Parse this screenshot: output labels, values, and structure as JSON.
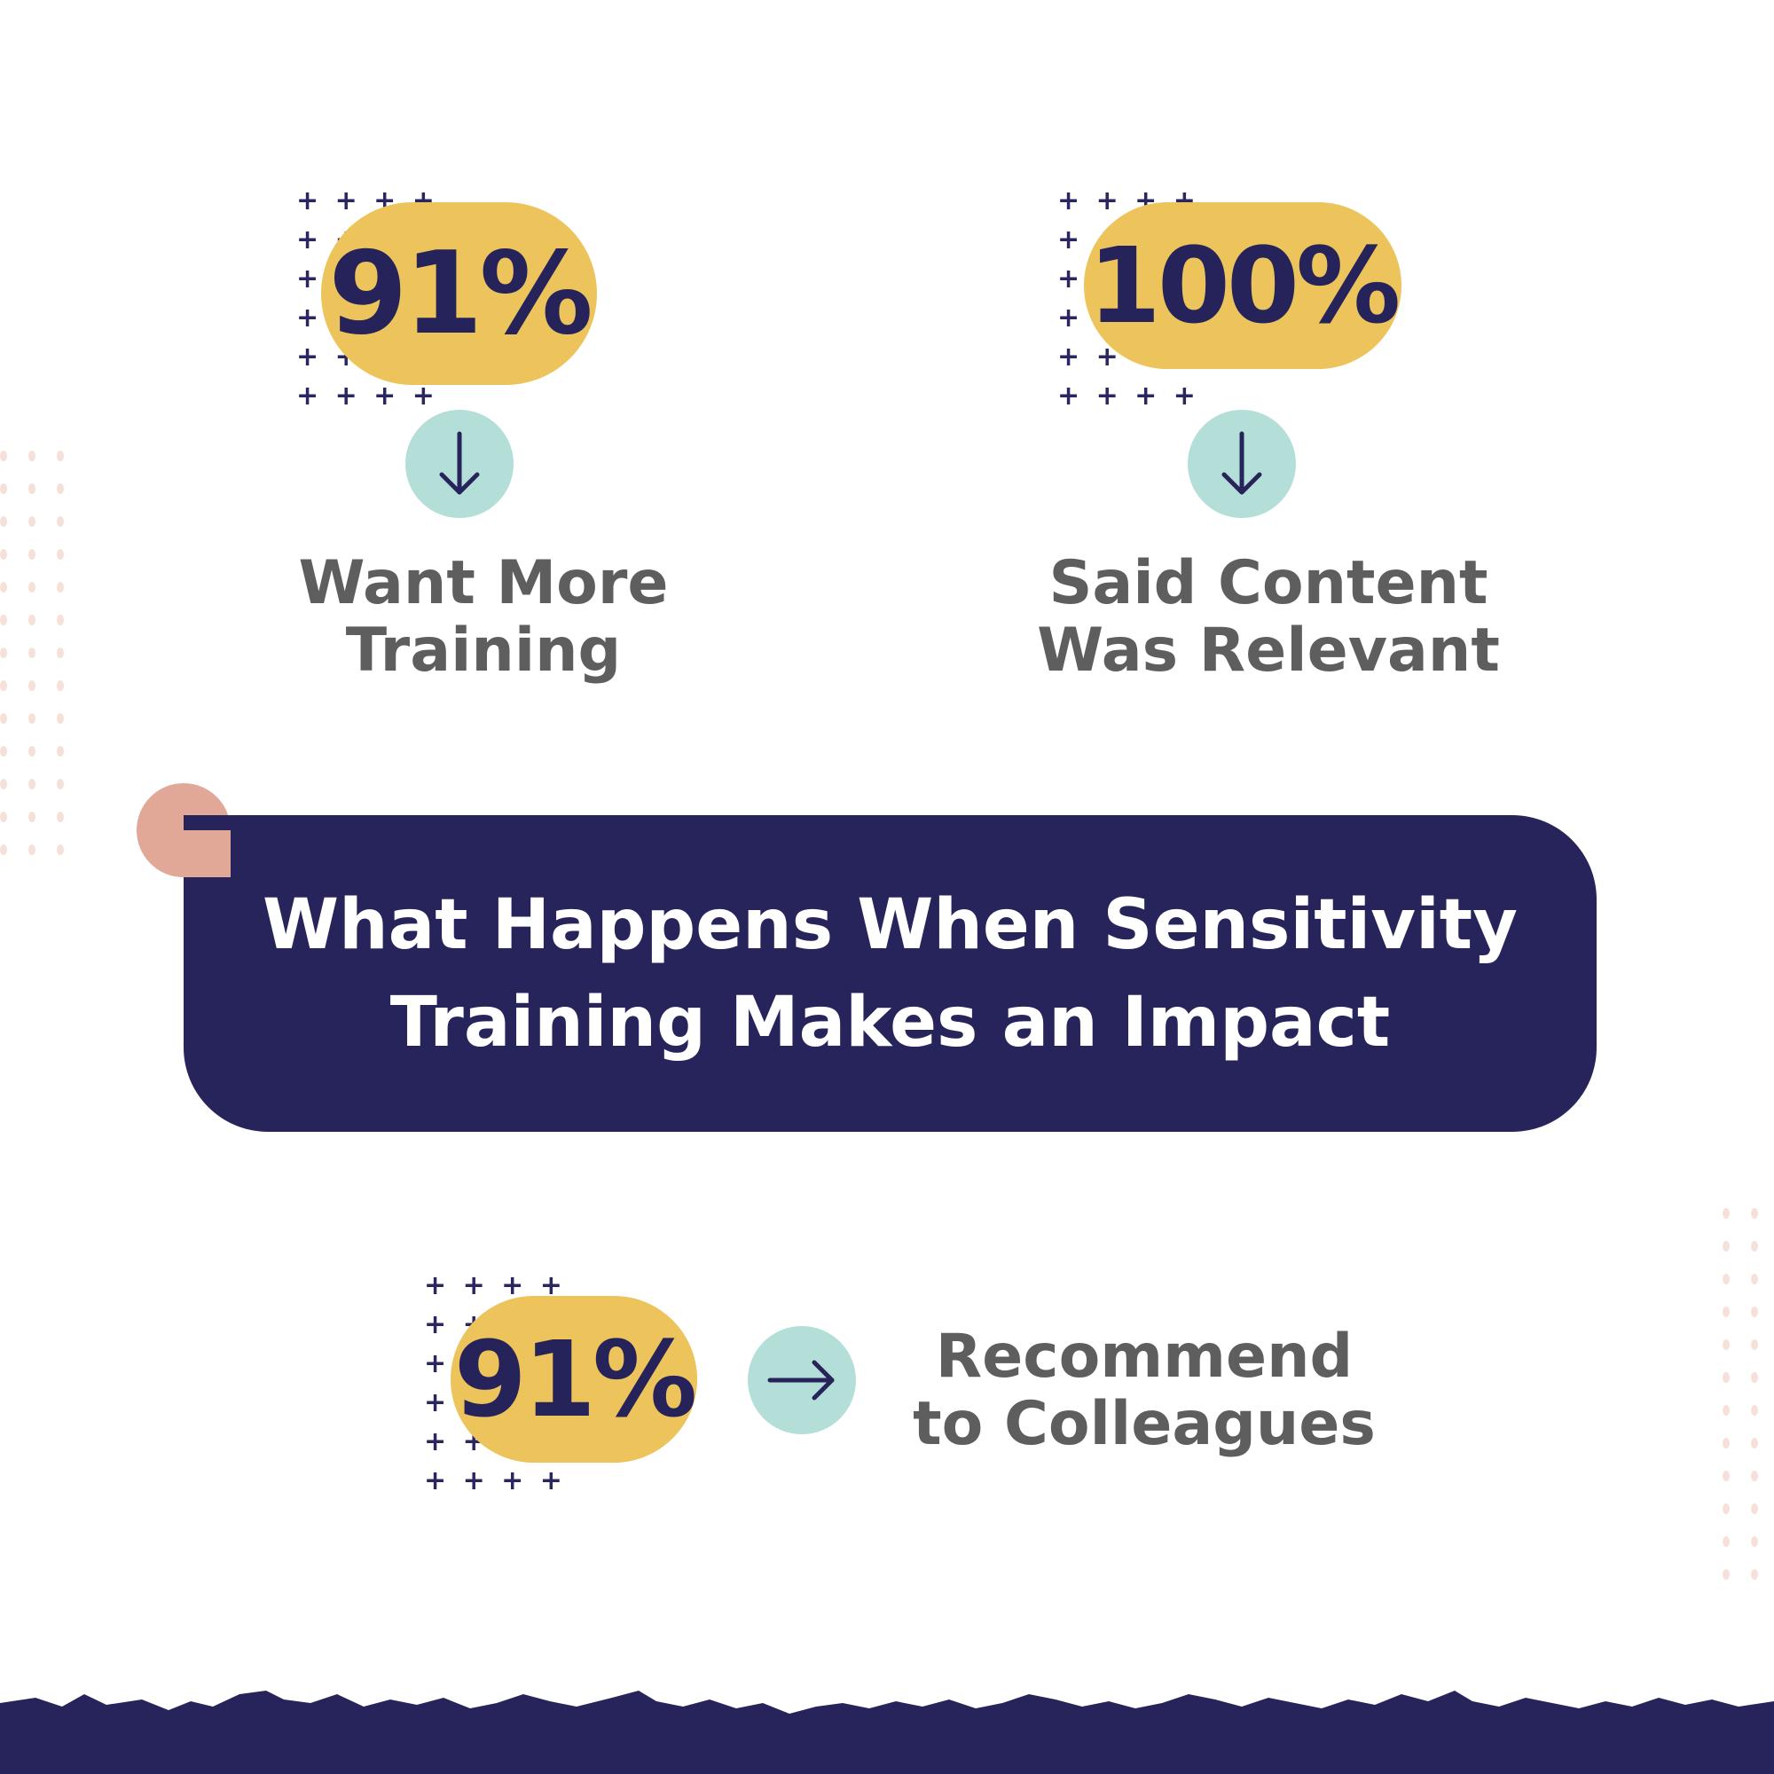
{
  "title": "What Happens When Sensitivity Training Makes an Impact",
  "stats": [
    {
      "value": "91%",
      "label_line1": "Want More",
      "label_line2": "Training",
      "arrow": "arrow-down-icon"
    },
    {
      "value": "100%",
      "label_line1": "Said Content",
      "label_line2": "Was Relevant",
      "arrow": "arrow-down-icon"
    },
    {
      "value": "91%",
      "label_line1": "Recommend",
      "label_line2": "to Colleagues",
      "arrow": "arrow-right-icon"
    }
  ],
  "colors": {
    "navy": "#26245a",
    "yellow": "#ecc45b",
    "mint": "#b4dfd9",
    "salmon": "#e1a898",
    "gray_text": "#5e5e5e"
  }
}
